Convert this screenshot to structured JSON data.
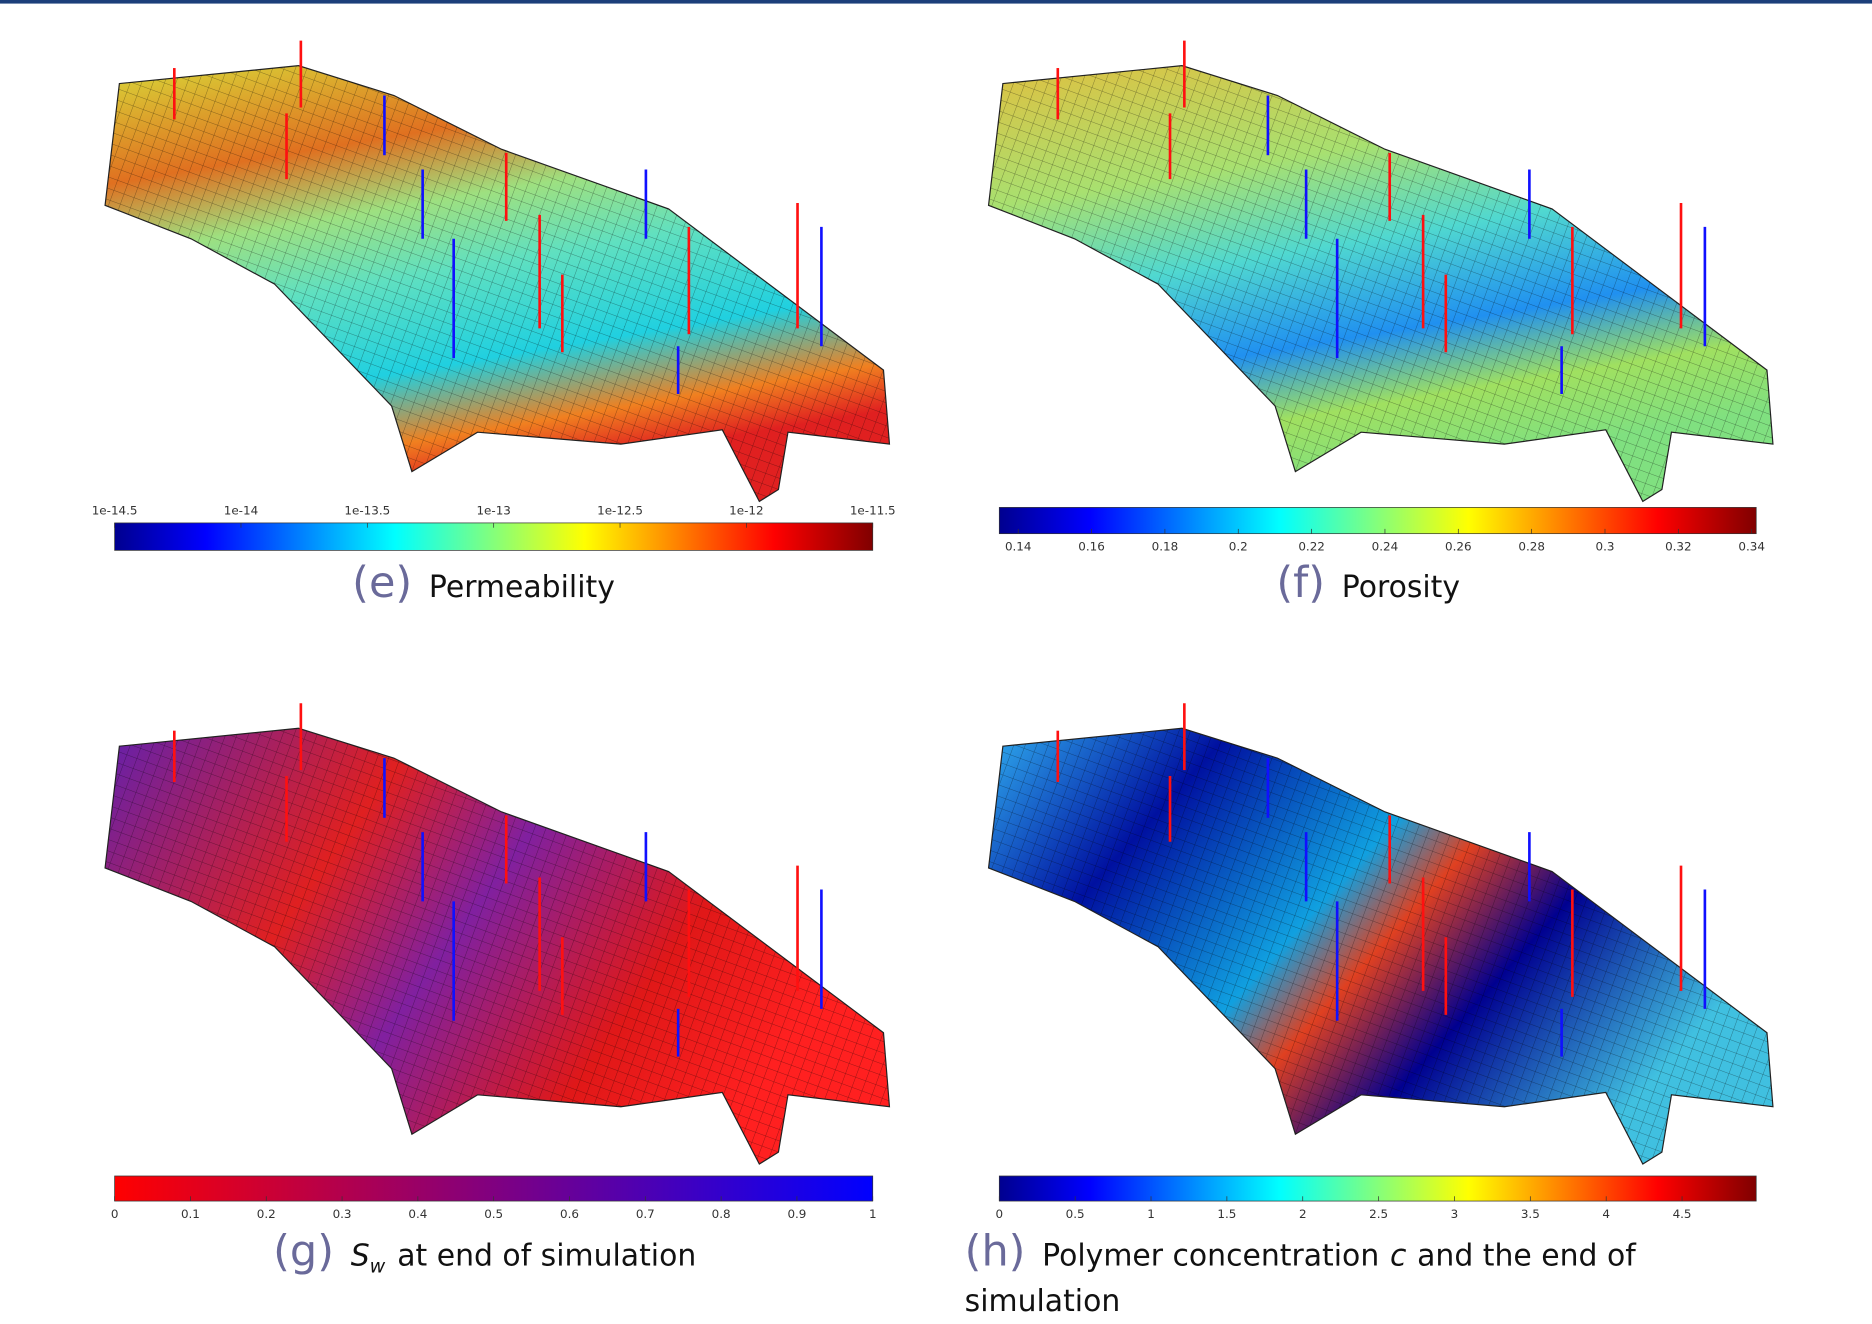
{
  "panels": [
    {
      "label": "(e)",
      "caption": "Permeability",
      "colorbar_ticks": [
        "1e-14.5",
        "1e-14",
        "1e-13.5",
        "1e-13",
        "1e-12.5",
        "1e-12",
        "1e-11.5"
      ]
    },
    {
      "label": "(f)",
      "caption": "Porosity",
      "colorbar_ticks": [
        0.14,
        0.16,
        0.18,
        0.2,
        0.22,
        0.24,
        0.26,
        0.28,
        0.3,
        0.32,
        0.34
      ]
    },
    {
      "label": "(g)",
      "symbol": "S",
      "subscript": "w",
      "caption": "at end of simulation",
      "colorbar_ticks": [
        0,
        0.1,
        0.2,
        0.3,
        0.4,
        0.5,
        0.6,
        0.7,
        0.8,
        0.9,
        1
      ]
    },
    {
      "label": "(h)",
      "caption": "Polymer concentration",
      "symbol": "c",
      "caption_end": "and the end of simulation",
      "colorbar_ticks": [
        0,
        0.5,
        1,
        1.5,
        2,
        2.5,
        3,
        3.5,
        4,
        4.5
      ]
    }
  ]
}
